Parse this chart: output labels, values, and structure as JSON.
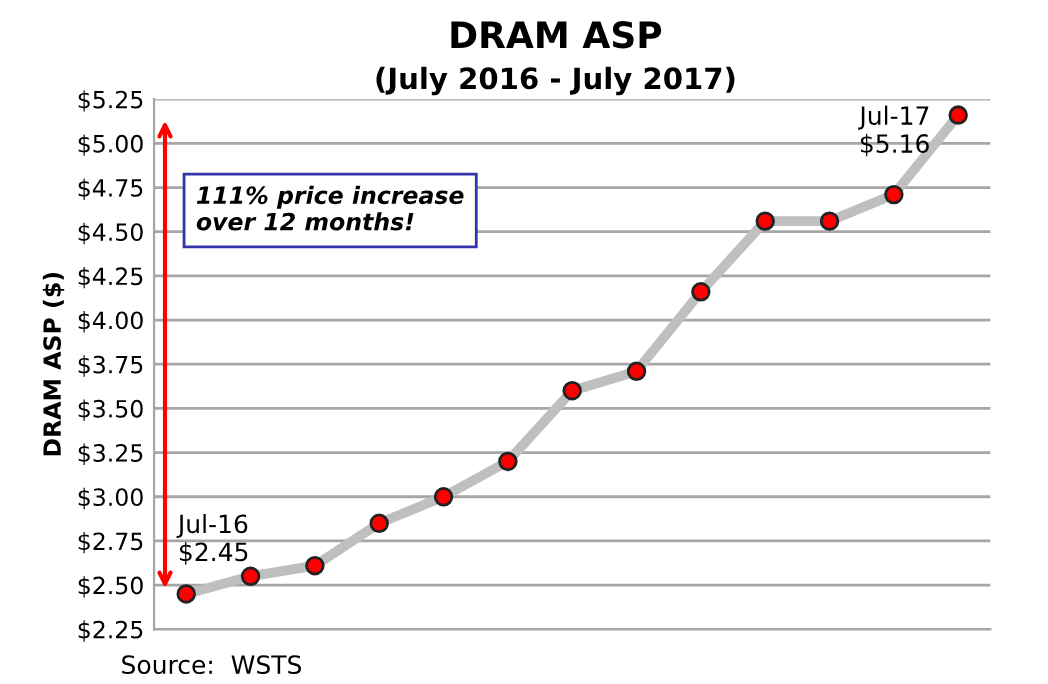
{
  "chart_data": {
    "type": "line",
    "title": "DRAM ASP",
    "subtitle": "(July 2016 - July 2017)",
    "ylabel": "DRAM ASP ($)",
    "categories": [
      null,
      null,
      null,
      null,
      null,
      null,
      null,
      null,
      null,
      null,
      null,
      null,
      null
    ],
    "series": [
      {
        "color": "#bfbfbf",
        "values": [
          2.45,
          2.55,
          2.61,
          2.85,
          3.0,
          3.2,
          3.6,
          3.71,
          4.16,
          4.56,
          4.56,
          4.71,
          5.16
        ]
      }
    ],
    "marker": "circle",
    "line_style": "solid",
    "grid": "y",
    "ylim": [
      2.25,
      5.25
    ],
    "yticks": [
      {
        "value": 2.25,
        "label": "$2.25"
      },
      {
        "value": 2.5,
        "label": "$2.50"
      },
      {
        "value": 2.75,
        "label": "$2.75"
      },
      {
        "value": 3.0,
        "label": "$3.00"
      },
      {
        "value": 3.25,
        "label": "$3.25"
      },
      {
        "value": 3.5,
        "label": "$3.50"
      },
      {
        "value": 3.75,
        "label": "$3.75"
      },
      {
        "value": 4.0,
        "label": "$4.00"
      },
      {
        "value": 4.25,
        "label": "$4.25"
      },
      {
        "value": 4.5,
        "label": "$4.50"
      },
      {
        "value": 4.75,
        "label": "$4.75"
      },
      {
        "value": 5.0,
        "label": "$5.00"
      },
      {
        "value": 5.25,
        "label": "$5.25"
      }
    ],
    "annotations": [
      "Jul-16\n$2.45",
      "Jul-17\n$5.16",
      "111% price increase\nover 12 months!",
      "Source:  WSTS"
    ]
  }
}
